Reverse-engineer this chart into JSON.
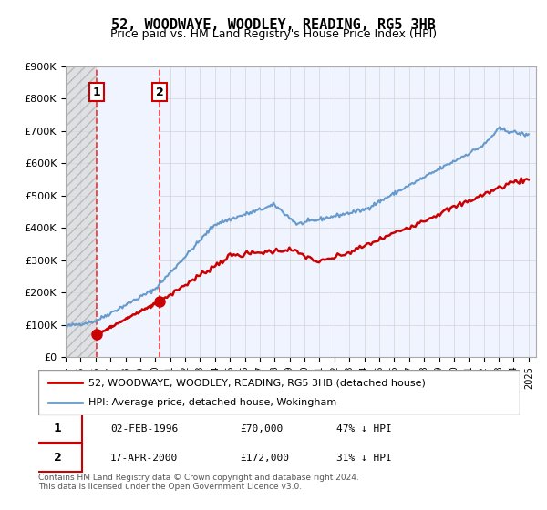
{
  "title": "52, WOODWAYE, WOODLEY, READING, RG5 3HB",
  "subtitle": "Price paid vs. HM Land Registry's House Price Index (HPI)",
  "ylabel_ticks": [
    "£0",
    "£100K",
    "£200K",
    "£300K",
    "£400K",
    "£500K",
    "£600K",
    "£700K",
    "£800K",
    "£900K"
  ],
  "ylim": [
    0,
    900000
  ],
  "xlim_start": 1994.0,
  "xlim_end": 2025.5,
  "xticks": [
    1994,
    1995,
    1996,
    1997,
    1998,
    1999,
    2000,
    2001,
    2002,
    2003,
    2004,
    2005,
    2006,
    2007,
    2008,
    2009,
    2010,
    2011,
    2012,
    2013,
    2014,
    2015,
    2016,
    2017,
    2018,
    2019,
    2020,
    2021,
    2022,
    2023,
    2024,
    2025
  ],
  "hpi_color": "#6699cc",
  "price_color": "#cc0000",
  "sale1_x": 1996.09,
  "sale1_y": 70000,
  "sale2_x": 2000.29,
  "sale2_y": 172000,
  "annotation1_label": "1",
  "annotation2_label": "2",
  "legend_line1": "52, WOODWAYE, WOODLEY, READING, RG5 3HB (detached house)",
  "legend_line2": "HPI: Average price, detached house, Wokingham",
  "table_row1": [
    "1",
    "02-FEB-1996",
    "£70,000",
    "47% ↓ HPI"
  ],
  "table_row2": [
    "2",
    "17-APR-2000",
    "£172,000",
    "31% ↓ HPI"
  ],
  "footer": "Contains HM Land Registry data © Crown copyright and database right 2024.\nThis data is licensed under the Open Government Licence v3.0.",
  "hatch_color": "#cccccc",
  "bg_plot": "#f0f4ff",
  "bg_hatch": "#e8e8e8",
  "grid_color": "#cccccc"
}
